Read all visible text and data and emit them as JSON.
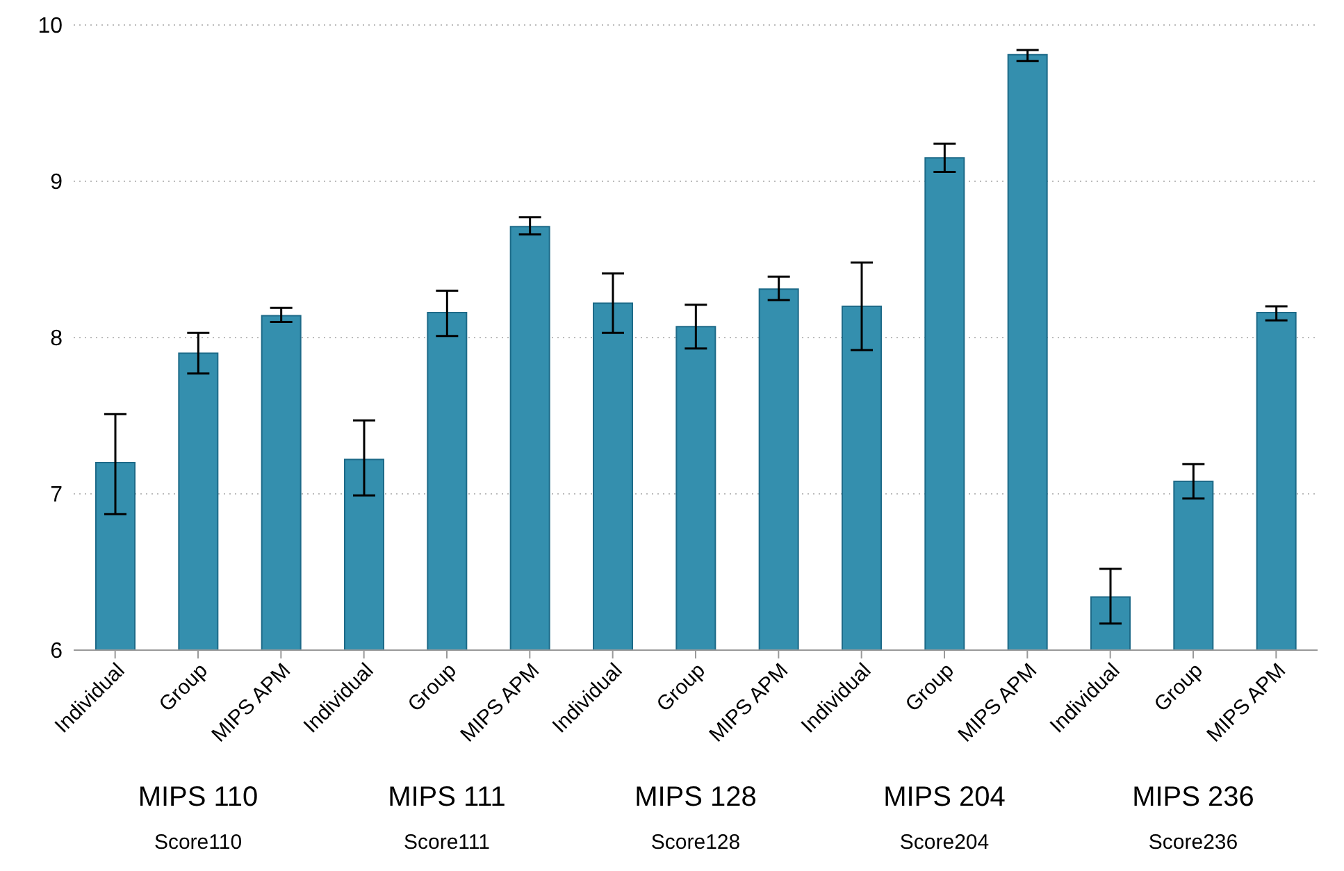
{
  "chart_data": {
    "type": "bar",
    "categories": [
      "Individual",
      "Group",
      "MIPS APM",
      "Individual",
      "Group",
      "MIPS APM",
      "Individual",
      "Group",
      "MIPS APM",
      "Individual",
      "Group",
      "MIPS APM",
      "Individual",
      "Group",
      "MIPS APM"
    ],
    "values": [
      7.2,
      7.9,
      8.14,
      7.22,
      8.16,
      8.71,
      8.22,
      8.07,
      8.31,
      8.2,
      9.15,
      9.81,
      6.34,
      7.08,
      8.16
    ],
    "errors": [
      [
        6.87,
        7.51
      ],
      [
        7.77,
        8.03
      ],
      [
        8.1,
        8.19
      ],
      [
        6.99,
        7.47
      ],
      [
        8.01,
        8.3
      ],
      [
        8.66,
        8.77
      ],
      [
        8.03,
        8.41
      ],
      [
        7.93,
        8.21
      ],
      [
        8.24,
        8.39
      ],
      [
        7.92,
        8.48
      ],
      [
        9.06,
        9.24
      ],
      [
        9.77,
        9.84
      ],
      [
        6.17,
        6.52
      ],
      [
        6.97,
        7.19
      ],
      [
        8.11,
        8.2
      ]
    ],
    "color": "#348fae",
    "ylim": [
      6,
      10
    ],
    "yticks": [
      6,
      7,
      8,
      9,
      10
    ],
    "grid": "y",
    "annotations": [
      "MIPS 110",
      "MIPS 111",
      "MIPS 128",
      "MIPS 204",
      "MIPS 236",
      "Score110",
      "Score111",
      "Score128",
      "Score204",
      "Score236"
    ]
  }
}
